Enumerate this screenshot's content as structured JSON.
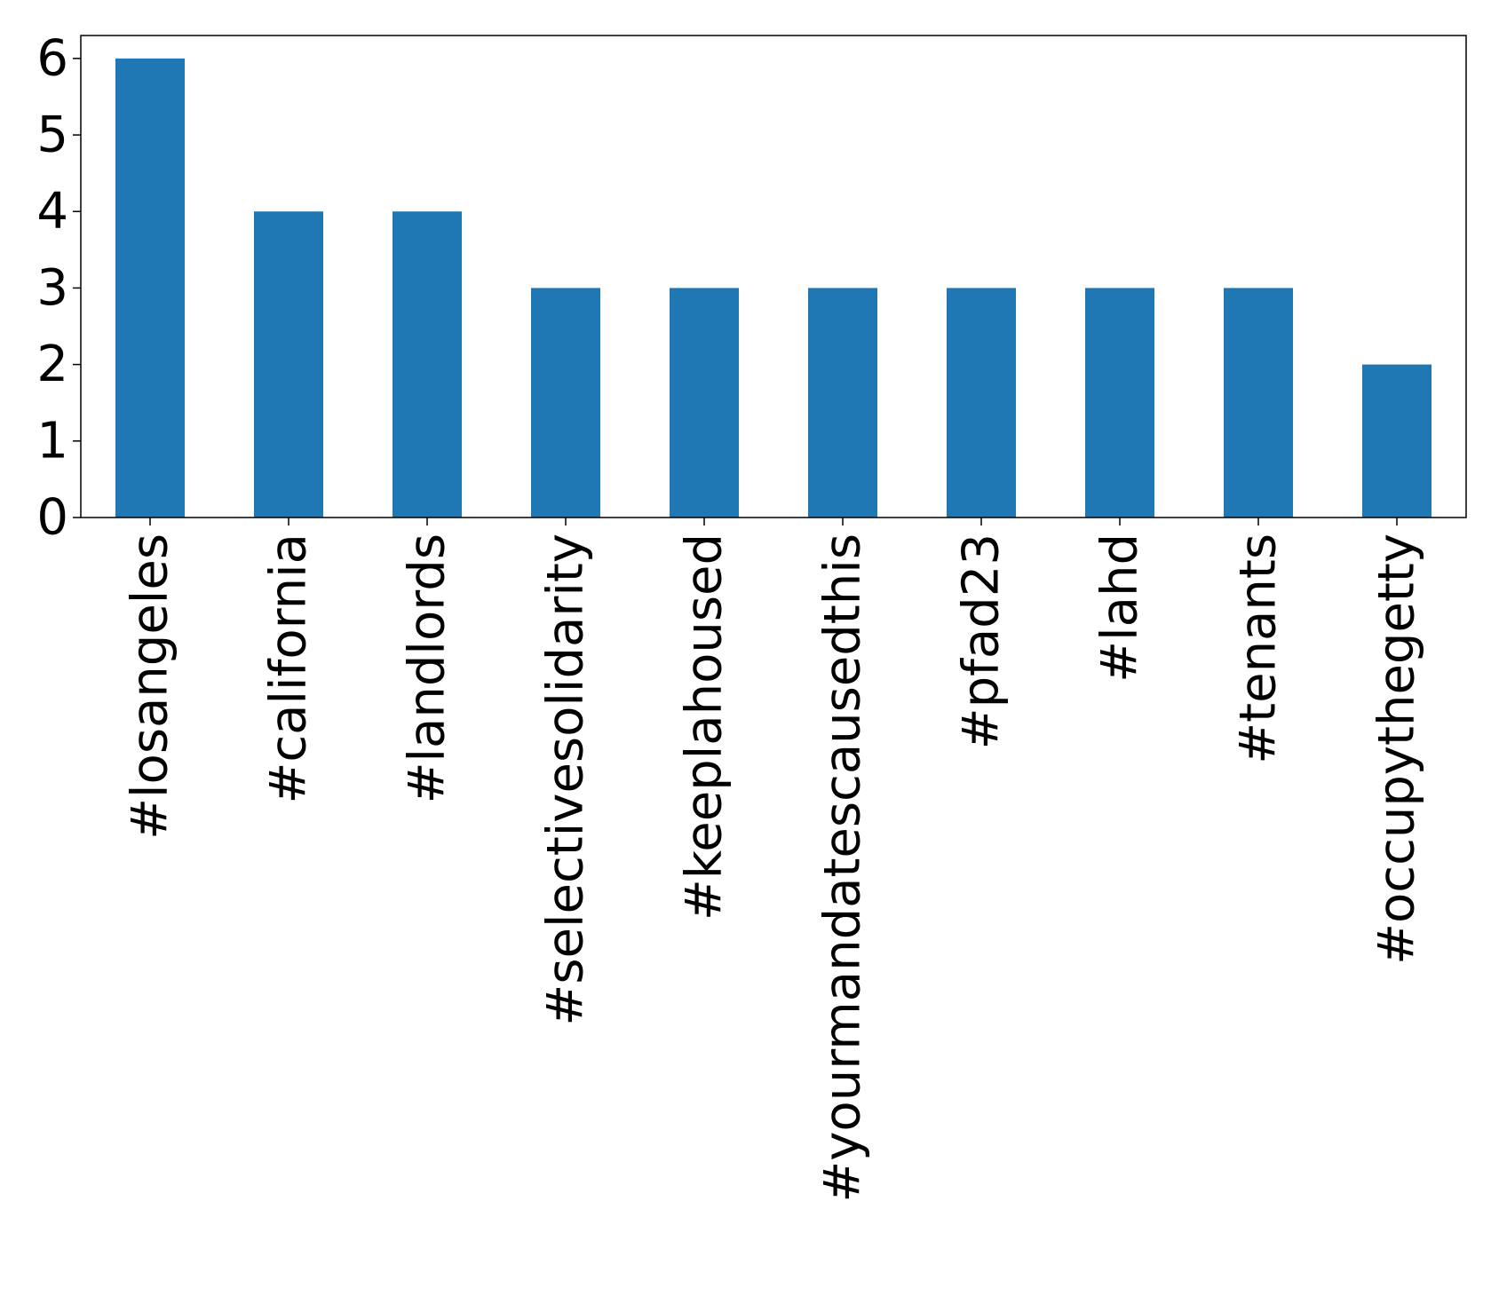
{
  "chart_data": {
    "type": "bar",
    "title": "",
    "xlabel": "",
    "ylabel": "",
    "categories": [
      "#losangeles",
      "#california",
      "#landlords",
      "#selectivesolidarity",
      "#keeplahoused",
      "#yourmandatescausedthis",
      "#pfad23",
      "#lahd",
      "#tenants",
      "#occupythegetty"
    ],
    "values": [
      6,
      4,
      4,
      3,
      3,
      3,
      3,
      3,
      3,
      2
    ],
    "ylim": [
      0,
      6.3
    ],
    "yticks": [
      0,
      1,
      2,
      3,
      4,
      5,
      6
    ],
    "bar_color": "#1f77b4",
    "grid": false,
    "legend": "none"
  }
}
